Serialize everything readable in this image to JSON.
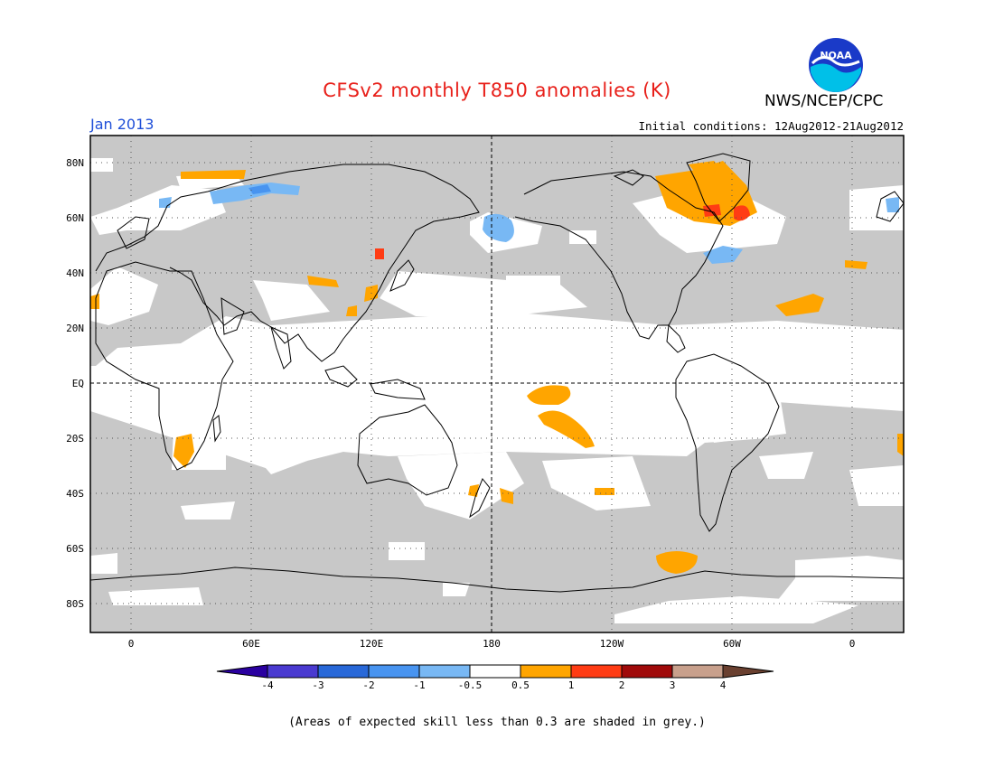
{
  "header": {
    "title": "CFSv2 monthly T850 anomalies (K)",
    "agency": "NWS/NCEP/CPC",
    "logo_text": "NOAA",
    "month": "Jan 2013",
    "initial_conditions": "Initial conditions: 12Aug2012-21Aug2012"
  },
  "map": {
    "lat_labels": [
      "80N",
      "60N",
      "40N",
      "20N",
      "EQ",
      "20S",
      "40S",
      "60S",
      "80S"
    ],
    "lon_labels": [
      "0",
      "60E",
      "120E",
      "180",
      "120W",
      "60W",
      "0"
    ],
    "colors": {
      "grey_skill": "#c8c8c8",
      "pos_0_5_to_1": "#ffa500",
      "pos_1_to_2": "#ff3c14",
      "neg_0_5_to_1": "#6fb0f0",
      "neg_1_to_2": "#4090f0"
    }
  },
  "colorbar": {
    "labels": [
      "-4",
      "-3",
      "-2",
      "-1",
      "-0.5",
      "0.5",
      "1",
      "2",
      "3",
      "4"
    ],
    "colors": [
      "#2a00a0",
      "#4a3ad0",
      "#2868d8",
      "#4894f0",
      "#78b8f4",
      "#ffffff",
      "#ffa500",
      "#ff3c14",
      "#a00a0a",
      "#c8a08c",
      "#6a4030"
    ]
  },
  "footer": {
    "note": "(Areas of expected skill less than 0.3 are shaded in grey.)"
  }
}
